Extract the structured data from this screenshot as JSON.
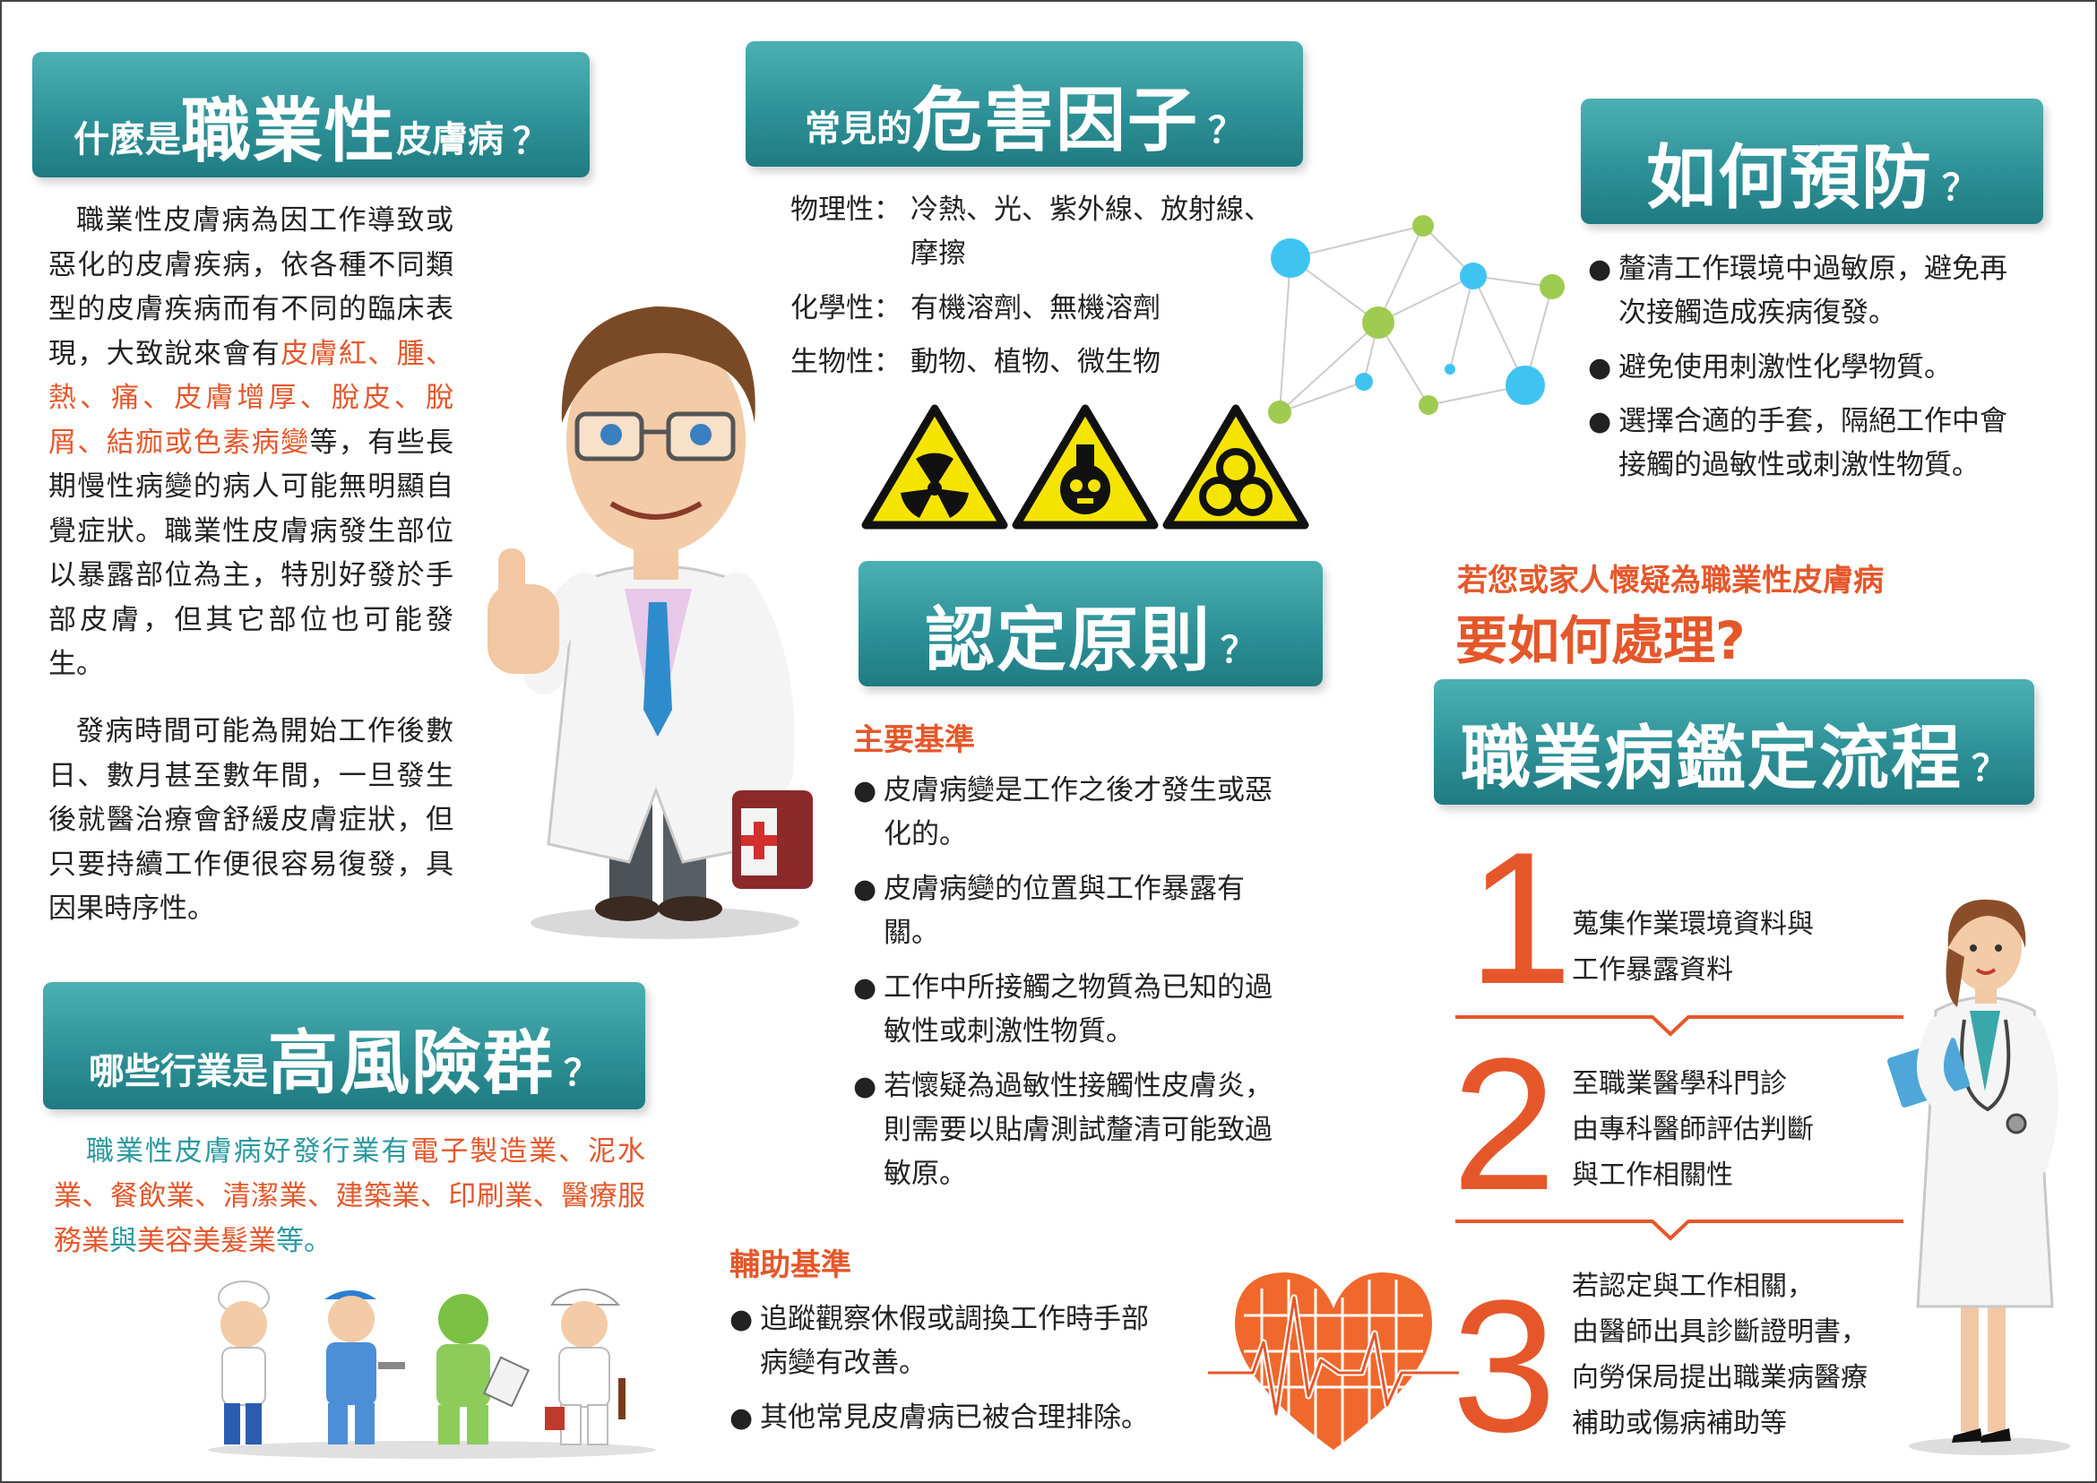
{
  "section_what": {
    "title_pre": "什麼是",
    "title_big": "職業性",
    "title_post": "皮膚病",
    "q": "？",
    "p1_a": "職業性皮膚病為因工作導致或惡化的皮膚疾病，依各種不同類型的皮膚疾病而有不同的臨床表現，大致說來會有",
    "p1_orange": "皮膚紅、腫、熱、痛、皮膚增厚、脫皮、脫屑、結痂或色素病變",
    "p1_b": "等，有些長期慢性病變的病人可能無明顯自覺症狀。職業性皮膚病發生部位以暴露部位為主，特別好發於手部皮膚，但其它部位也可能發生。",
    "p2": "發病時間可能為開始工作後數日、數月甚至數年間，一旦發生後就醫治療會舒緩皮膚症狀，但只要持續工作便很容易復發，具因果時序性。"
  },
  "section_hazards": {
    "title_pre": "常見的",
    "title_big": "危害因子",
    "q": "？",
    "items": [
      {
        "label": "物理性：",
        "text": "冷熱、光、紫外線、放射線、",
        "text2": "摩擦"
      },
      {
        "label": "化學性：",
        "text": "有機溶劑、無機溶劑"
      },
      {
        "label": "生物性：",
        "text": "動物、植物、微生物"
      }
    ]
  },
  "section_prevent": {
    "title_big": "如何預防",
    "q": "？",
    "items": [
      {
        "l1": "釐清工作環境中過敏原，避免再",
        "l2": "次接觸造成疾病復發。"
      },
      {
        "l1": "避免使用刺激性化學物質。"
      },
      {
        "l1": "選擇合適的手套，隔絕工作中會",
        "l2": "接觸的過敏性或刺激性物質。"
      }
    ]
  },
  "section_criteria": {
    "title_big": "認定原則",
    "q": "？",
    "main_head": "主要基準",
    "main_items": [
      {
        "l1": "皮膚病變是工作之後才發生或惡",
        "l2": "化的。"
      },
      {
        "l1": "皮膚病變的位置與工作暴露有",
        "l2": "關。"
      },
      {
        "l1": "工作中所接觸之物質為已知的過",
        "l2": "敏性或刺激性物質。"
      },
      {
        "l1": "若懷疑為過敏性接觸性皮膚炎，",
        "l2": "則需要以貼膚測試釐清可能致過",
        "l3": "敏原。"
      }
    ],
    "aux_head": "輔助基準",
    "aux_items": [
      {
        "l1": "追蹤觀察休假或調換工作時手部",
        "l2": "病變有改善。"
      },
      {
        "l1": "其他常見皮膚病已被合理排除。"
      }
    ]
  },
  "section_risk": {
    "title_pre": "哪些行業是",
    "title_big": "高風險群",
    "q": "？",
    "text_a": "職業性皮膚病好發行業有",
    "text_orange": "電子製造業、泥水業、餐飲業、清潔業、建築業、印刷業、醫療服務業",
    "text_b": "與",
    "text_orange2": "美容美髮業",
    "text_c": "等。"
  },
  "section_process": {
    "lead": "若您或家人懷疑為職業性皮膚病",
    "lead_big": "要如何處理?",
    "title_big": "職業病鑑定流程",
    "q": "？",
    "steps": [
      {
        "num": "1",
        "lines": [
          "蒐集作業環境資料與",
          "工作暴露資料"
        ]
      },
      {
        "num": "2",
        "lines": [
          "至職業醫學科門診",
          "由專科醫師評估判斷",
          "與工作相關性"
        ]
      },
      {
        "num": "3",
        "lines": [
          "若認定與工作相關，",
          "由醫師出具診斷證明書，",
          "向勞保局提出職業病醫療",
          "補助或傷病補助等"
        ]
      }
    ]
  },
  "colors": {
    "teal": "#2e9298",
    "orange": "#e5572a",
    "hazard_yellow": "#f5e400"
  }
}
